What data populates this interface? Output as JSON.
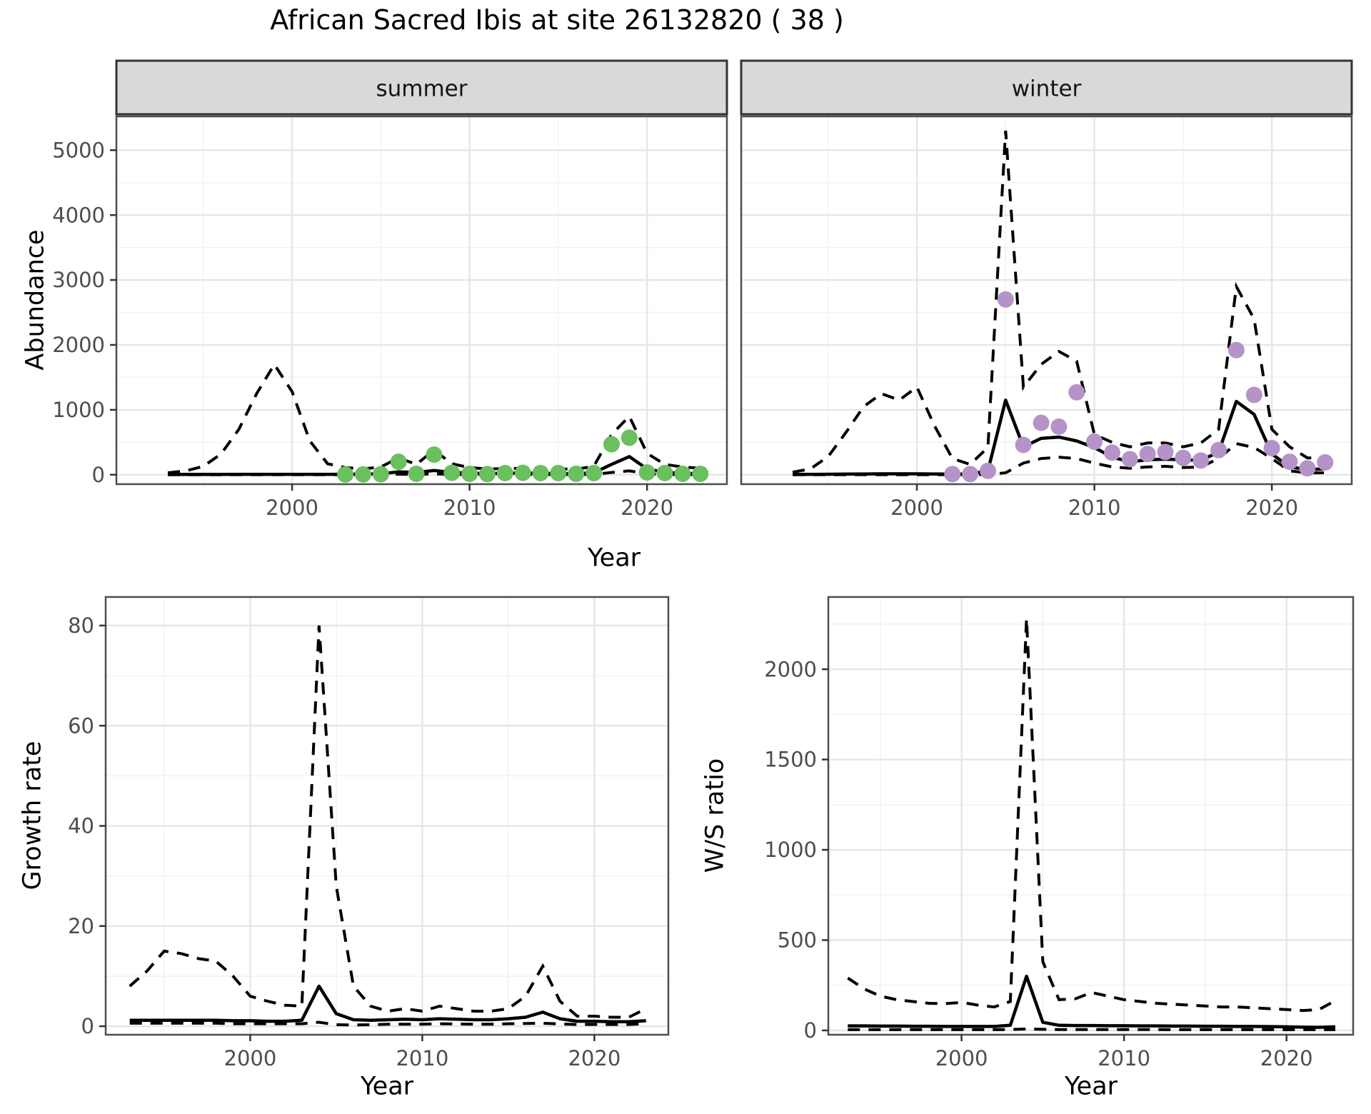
{
  "title": "African Sacred Ibis at site 26132820 ( 38 )",
  "chart_data": {
    "type": "line",
    "figure_title": "African Sacred Ibis at site 26132820 ( 38 )",
    "legend": "none",
    "grid": "on",
    "line_styles": {
      "fit": "solid black",
      "ci_upper": "dashed black",
      "ci_lower": "dashed black"
    },
    "colors": {
      "summer_points": "#6abf5e",
      "winter_points": "#b493c8",
      "strip_fill": "#d9d9d9",
      "grid_major": "#e6e6e6",
      "grid_minor": "#f2f2f2",
      "panel_border": "#4d4d4d",
      "tick_text": "#4d4d4d"
    },
    "shared_x_axis_label": "Year",
    "panels": [
      {
        "key": "abundance_summer",
        "facet_label": "summer",
        "y_axis_label": "Abundance",
        "x_axis_label": "Year",
        "xlim": [
          1990.1,
          2024.5
        ],
        "ylim": [
          -145,
          5520
        ],
        "x_ticks": [
          2000,
          2010,
          2020
        ],
        "x_minor": [
          1995,
          2005,
          2015
        ],
        "y_ticks": [
          0,
          1000,
          2000,
          3000,
          4000,
          5000
        ],
        "y_minor": [
          500,
          1500,
          2500,
          3500,
          4500
        ],
        "years": [
          1993,
          1994,
          1995,
          1996,
          1997,
          1998,
          1999,
          2000,
          2001,
          2002,
          2003,
          2004,
          2005,
          2006,
          2007,
          2008,
          2009,
          2010,
          2011,
          2012,
          2013,
          2014,
          2015,
          2016,
          2017,
          2018,
          2019,
          2020,
          2021,
          2022,
          2023
        ],
        "ci_upper": [
          30,
          60,
          130,
          320,
          700,
          1250,
          1700,
          1280,
          520,
          170,
          110,
          90,
          120,
          260,
          160,
          380,
          170,
          110,
          90,
          95,
          100,
          95,
          90,
          85,
          130,
          620,
          900,
          330,
          160,
          120,
          100
        ],
        "fit": [
          5,
          5,
          5,
          5,
          6,
          6,
          7,
          7,
          6,
          6,
          8,
          10,
          15,
          45,
          35,
          65,
          35,
          25,
          18,
          22,
          25,
          22,
          20,
          18,
          30,
          160,
          280,
          90,
          35,
          22,
          15
        ],
        "ci_lower": [
          0,
          0,
          0,
          0,
          0,
          0,
          0,
          0,
          0,
          0,
          0,
          0,
          2,
          8,
          5,
          12,
          6,
          4,
          3,
          4,
          4,
          4,
          3,
          3,
          5,
          35,
          60,
          15,
          5,
          3,
          2
        ],
        "obs_years": [
          2003,
          2004,
          2005,
          2006,
          2007,
          2008,
          2009,
          2010,
          2011,
          2012,
          2013,
          2014,
          2015,
          2016,
          2017,
          2018,
          2019,
          2020,
          2021,
          2022,
          2023
        ],
        "obs_values": [
          5,
          5,
          8,
          200,
          15,
          310,
          30,
          15,
          10,
          25,
          30,
          25,
          25,
          15,
          25,
          470,
          570,
          35,
          25,
          15,
          15
        ],
        "point_color": "#6abf5e"
      },
      {
        "key": "abundance_winter",
        "facet_label": "winter",
        "y_axis_label": "",
        "x_axis_label": "Year",
        "xlim": [
          1990.1,
          2024.5
        ],
        "ylim": [
          -145,
          5520
        ],
        "x_ticks": [
          2000,
          2010,
          2020
        ],
        "x_minor": [
          1995,
          2005,
          2015
        ],
        "y_ticks": [
          0,
          1000,
          2000,
          3000,
          4000,
          5000
        ],
        "y_minor": [
          500,
          1500,
          2500,
          3500,
          4500
        ],
        "years": [
          1993,
          1994,
          1995,
          1996,
          1997,
          1998,
          1999,
          2000,
          2001,
          2002,
          2003,
          2004,
          2005,
          2006,
          2007,
          2008,
          2009,
          2010,
          2011,
          2012,
          2013,
          2014,
          2015,
          2016,
          2017,
          2018,
          2019,
          2020,
          2021,
          2022,
          2023
        ],
        "ci_upper": [
          40,
          90,
          280,
          650,
          1050,
          1250,
          1150,
          1350,
          750,
          250,
          160,
          420,
          5300,
          1350,
          1700,
          1900,
          1750,
          620,
          500,
          430,
          490,
          490,
          430,
          490,
          700,
          2900,
          2400,
          700,
          430,
          260,
          260
        ],
        "fit": [
          5,
          6,
          8,
          10,
          12,
          14,
          14,
          15,
          12,
          10,
          12,
          60,
          1150,
          430,
          560,
          580,
          520,
          420,
          270,
          200,
          230,
          240,
          230,
          220,
          350,
          1130,
          930,
          320,
          120,
          80,
          90
        ],
        "ci_lower": [
          0,
          0,
          0,
          0,
          0,
          0,
          0,
          0,
          0,
          0,
          0,
          5,
          30,
          180,
          250,
          270,
          250,
          180,
          120,
          100,
          120,
          130,
          110,
          120,
          250,
          480,
          420,
          250,
          60,
          30,
          30
        ],
        "obs_years": [
          2002,
          2003,
          2004,
          2005,
          2006,
          2007,
          2008,
          2009,
          2010,
          2011,
          2012,
          2013,
          2014,
          2015,
          2016,
          2017,
          2018,
          2019,
          2020,
          2021,
          2022,
          2023
        ],
        "obs_values": [
          10,
          10,
          60,
          2700,
          460,
          800,
          740,
          1270,
          510,
          340,
          240,
          320,
          350,
          260,
          220,
          380,
          1920,
          1230,
          410,
          200,
          100,
          190
        ],
        "point_color": "#b493c8"
      },
      {
        "key": "growth_rate",
        "facet_label": "",
        "y_axis_label": "Growth rate",
        "x_axis_label": "Year",
        "xlim": [
          1991.6,
          2024.3
        ],
        "ylim": [
          -1.7,
          85.7
        ],
        "x_ticks": [
          2000,
          2010,
          2020
        ],
        "x_minor": [
          1995,
          2005,
          2015
        ],
        "y_ticks": [
          0,
          20,
          40,
          60,
          80
        ],
        "y_minor": [
          10,
          30,
          50,
          70
        ],
        "years": [
          1993,
          1994,
          1995,
          1996,
          1997,
          1998,
          1999,
          2000,
          2001,
          2002,
          2003,
          2004,
          2005,
          2006,
          2007,
          2008,
          2009,
          2010,
          2011,
          2012,
          2013,
          2014,
          2015,
          2016,
          2017,
          2018,
          2019,
          2020,
          2021,
          2022,
          2023
        ],
        "ci_upper": [
          8,
          11,
          15,
          14.5,
          13.5,
          13,
          10,
          6,
          5,
          4.2,
          4,
          80,
          28,
          8,
          4,
          3,
          3.5,
          3,
          4,
          3.5,
          3,
          3,
          3.5,
          6,
          12,
          5,
          2,
          2,
          1.8,
          1.8,
          3.5
        ],
        "fit": [
          1.2,
          1.2,
          1.2,
          1.2,
          1.2,
          1.2,
          1.1,
          1.1,
          1,
          1,
          1.2,
          8,
          2.5,
          1.3,
          1.2,
          1.3,
          1.4,
          1.3,
          1.5,
          1.4,
          1.3,
          1.3,
          1.5,
          1.8,
          2.8,
          1.5,
          1,
          1,
          0.9,
          0.9,
          1.1
        ],
        "ci_lower": [
          0.6,
          0.6,
          0.6,
          0.6,
          0.6,
          0.6,
          0.5,
          0.5,
          0.5,
          0.5,
          0.5,
          0.8,
          0.3,
          0.25,
          0.3,
          0.4,
          0.4,
          0.4,
          0.5,
          0.45,
          0.4,
          0.4,
          0.5,
          0.55,
          0.6,
          0.45,
          0.35,
          0.35,
          0.35,
          0.35,
          0.5
        ],
        "obs_years": [],
        "obs_values": [],
        "point_color": "#000000"
      },
      {
        "key": "ws_ratio",
        "facet_label": "",
        "y_axis_label": "W/S ratio",
        "x_axis_label": "Year",
        "xlim": [
          1991.8,
          2024.1
        ],
        "ylim": [
          -24,
          2400
        ],
        "x_ticks": [
          2000,
          2010,
          2020
        ],
        "x_minor": [
          1995,
          2005,
          2015
        ],
        "y_ticks": [
          0,
          500,
          1000,
          1500,
          2000
        ],
        "y_minor": [
          250,
          750,
          1250,
          1750,
          2250
        ],
        "years": [
          1993,
          1994,
          1995,
          1996,
          1997,
          1998,
          1999,
          2000,
          2001,
          2002,
          2003,
          2004,
          2005,
          2006,
          2007,
          2008,
          2009,
          2010,
          2011,
          2012,
          2013,
          2014,
          2015,
          2016,
          2017,
          2018,
          2019,
          2020,
          2021,
          2022,
          2023
        ],
        "ci_upper": [
          290,
          230,
          190,
          170,
          160,
          150,
          148,
          155,
          140,
          130,
          160,
          2280,
          380,
          170,
          175,
          210,
          190,
          170,
          160,
          150,
          145,
          140,
          135,
          130,
          130,
          125,
          120,
          115,
          110,
          115,
          165
        ],
        "fit": [
          25,
          25,
          24,
          24,
          23,
          23,
          22,
          22,
          22,
          22,
          28,
          300,
          45,
          28,
          27,
          27,
          26,
          26,
          25,
          25,
          24,
          24,
          23,
          23,
          22,
          22,
          21,
          20,
          18,
          17,
          20
        ],
        "ci_lower": [
          4,
          4,
          4,
          4,
          4,
          4,
          4,
          4,
          4,
          4,
          5,
          8,
          6,
          5,
          5,
          5,
          5,
          5,
          5,
          5,
          4,
          4,
          4,
          4,
          4,
          4,
          4,
          4,
          4,
          4,
          4
        ],
        "obs_years": [],
        "obs_values": [],
        "point_color": "#000000"
      }
    ]
  }
}
